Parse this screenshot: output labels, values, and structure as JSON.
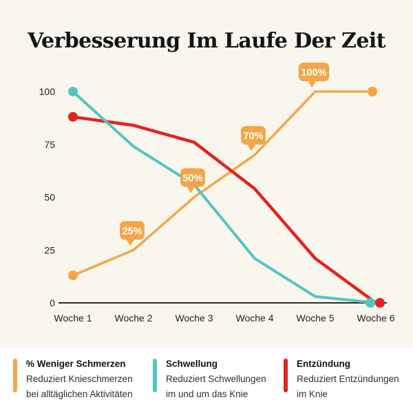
{
  "title": "Verbesserung Im Laufe Der Zeit",
  "colors": {
    "background": "#F8F6ED",
    "legend_background": "#FFFFFF",
    "axis": "#2B2B27",
    "text": "#22221E",
    "orange": "#F3A64A",
    "teal": "#53C5C0",
    "red": "#E6211E",
    "badge_text": "#FFFFFF"
  },
  "chart_data": {
    "type": "line",
    "title": "Verbesserung Im Laufe Der Zeit",
    "x_categories": [
      "Woche 1",
      "Woche 2",
      "Woche 3",
      "Woche 4",
      "Woche 5",
      "Woche 6"
    ],
    "y_ticks": [
      0,
      25,
      50,
      75,
      100
    ],
    "ylim": [
      0,
      100
    ],
    "grid": false,
    "legend_position": "bottom",
    "series": [
      {
        "name": "% Weniger Schmerzen",
        "color": "#F3A64A",
        "values": [
          13,
          25,
          50,
          70,
          100,
          100
        ],
        "point_labels": [
          null,
          "25%",
          "50%",
          "70%",
          "100%",
          null
        ]
      },
      {
        "name": "Schwellung",
        "color": "#53C5C0",
        "values": [
          100,
          74,
          56,
          21,
          3,
          0
        ],
        "point_labels": [
          null,
          null,
          null,
          null,
          null,
          null
        ]
      },
      {
        "name": "Entzündung",
        "color": "#E6211E",
        "values": [
          88,
          84,
          76,
          54,
          21,
          0
        ],
        "point_labels": [
          null,
          null,
          null,
          null,
          null,
          null
        ]
      }
    ]
  },
  "legend": {
    "items": [
      {
        "title": "% Weniger Schmerzen",
        "color": "#F3A64A",
        "lines": [
          "Reduziert Knieschmerzen",
          "bei alltäglichen Aktivitäten"
        ]
      },
      {
        "title": "Schwellung",
        "color": "#53C5C0",
        "lines": [
          "Reduziert Schwellungen",
          "im und um das Knie"
        ]
      },
      {
        "title": "Entzündung",
        "color": "#E6211E",
        "lines": [
          "Reduziert Entzündungen",
          "im Knie"
        ]
      }
    ]
  }
}
